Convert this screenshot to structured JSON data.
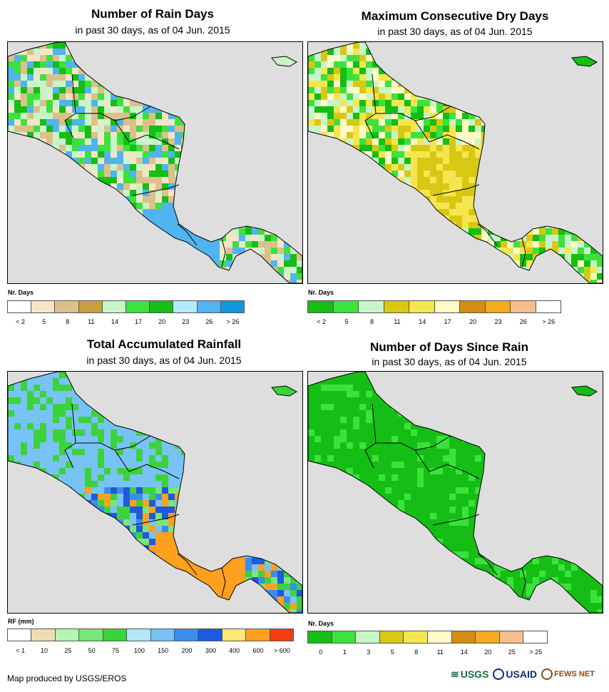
{
  "panels": [
    {
      "title": "Number of Rain Days",
      "subtitle": "in past 30 days, as of 04 Jun. 2015",
      "legend_title": "Nr. Days",
      "legend_colors": [
        "#ffffff",
        "#f5e4c8",
        "#dcc08a",
        "#c9a040",
        "#c8f5c8",
        "#3ce23c",
        "#14be14",
        "#b4ebfa",
        "#50b4f0",
        "#1496dc"
      ],
      "legend_labels": [
        "< 2",
        "5",
        "8",
        "11",
        "14",
        "17",
        "20",
        "23",
        "26",
        "> 26"
      ],
      "map_fill": {
        "land": [
          "#dcc08a",
          "#c8f5c8",
          "#3ce23c",
          "#14be14",
          "#f5e4c8",
          "#50b4f0"
        ]
      }
    },
    {
      "title": "Maximum Consecutive Dry Days",
      "subtitle": "in past 30 days, as of 04 Jun. 2015",
      "legend_title": "Nr. Days",
      "legend_colors": [
        "#14be14",
        "#3ce23c",
        "#c8f5c8",
        "#d8c814",
        "#f5e650",
        "#fffac8",
        "#d88c14",
        "#f5aa1e",
        "#f5be8c",
        "#ffffff"
      ],
      "legend_labels": [
        "< 2",
        "5",
        "8",
        "11",
        "14",
        "17",
        "20",
        "23",
        "26",
        "> 26"
      ],
      "map_fill": {
        "land": [
          "#3ce23c",
          "#14be14",
          "#d8c814",
          "#f5e650",
          "#fffac8",
          "#c8f5c8"
        ]
      }
    },
    {
      "title": "Total Accumulated Rainfall",
      "subtitle": "in past 30 days, as of 04 Jun. 2015",
      "legend_title": "RF (mm)",
      "legend_colors": [
        "#ffffff",
        "#f0dcb4",
        "#b4f5b4",
        "#78e678",
        "#3cd23c",
        "#b4e6fa",
        "#78c3f5",
        "#3c8cf0",
        "#1e5adc",
        "#ffe678",
        "#ffa01e",
        "#f53c14"
      ],
      "legend_labels": [
        "< 1",
        "10",
        "25",
        "50",
        "75",
        "100",
        "150",
        "200",
        "300",
        "400",
        "600",
        "> 600"
      ],
      "map_fill": {
        "land": [
          "#78c3f5",
          "#3cd23c",
          "#78e678",
          "#3c8cf0",
          "#ffa01e",
          "#1e5adc"
        ]
      }
    },
    {
      "title": "Number of Days Since Rain",
      "subtitle": "in past 30 days, as of 04 Jun. 2015",
      "legend_title": "Nr. Days",
      "legend_colors": [
        "#14be14",
        "#3ce23c",
        "#c8f5c8",
        "#d8c814",
        "#f5e650",
        "#fffac8",
        "#d88c14",
        "#f5aa1e",
        "#f5be8c",
        "#ffffff"
      ],
      "legend_labels": [
        "0",
        "1",
        "3",
        "5",
        "8",
        "11",
        "14",
        "20",
        "25",
        "> 25"
      ],
      "map_fill": {
        "land": [
          "#14be14",
          "#14be14",
          "#14be14",
          "#3ce23c",
          "#14be14",
          "#14be14"
        ]
      }
    }
  ],
  "credit": "Map produced by USGS/EROS",
  "logos": {
    "usgs": "USGS",
    "usaid": "USAID",
    "fews": "FEWS NET"
  },
  "colors": {
    "ocean": "#dedede",
    "border": "#000000"
  }
}
